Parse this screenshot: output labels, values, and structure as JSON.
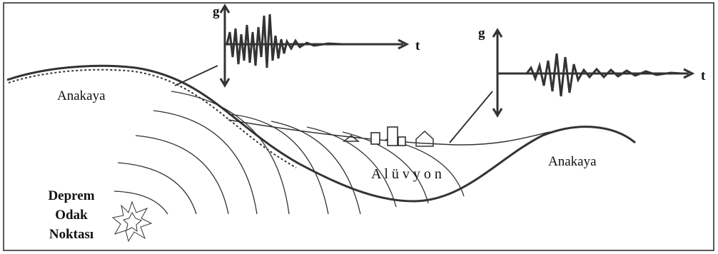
{
  "seismograms": [
    {
      "y_label": "g",
      "x_label": "t"
    },
    {
      "y_label": "g",
      "x_label": "t"
    }
  ],
  "labels": {
    "rock_left": "Anakaya",
    "rock_right": "Anakaya",
    "alluvium": "A l ü v y o n",
    "focus": [
      "Deprem",
      "Odak",
      "Noktası"
    ]
  }
}
